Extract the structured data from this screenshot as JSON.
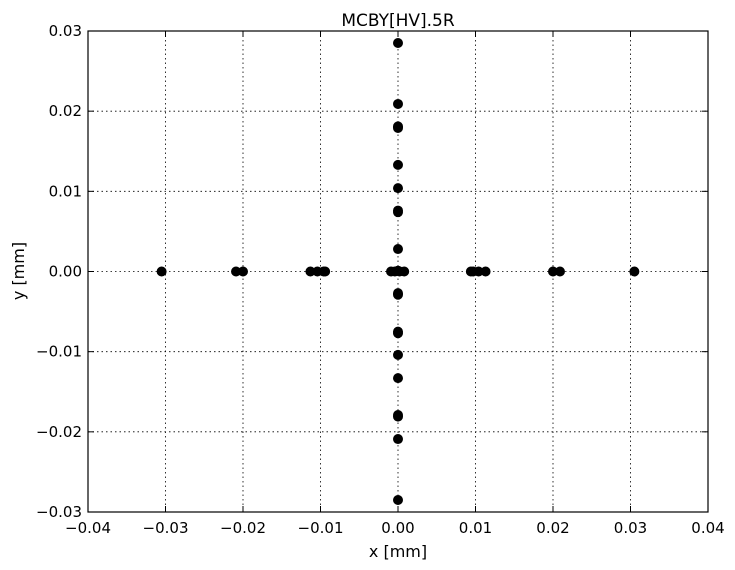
{
  "chart_data": {
    "type": "scatter",
    "title": "MCBY[HV].5R",
    "xlabel": "x [mm]",
    "ylabel": "y [mm]",
    "xlim": [
      -0.04,
      0.04
    ],
    "ylim": [
      -0.03,
      0.03
    ],
    "xticks": [
      -0.04,
      -0.03,
      -0.02,
      -0.01,
      0.0,
      0.01,
      0.02,
      0.03,
      0.04
    ],
    "xtick_labels": [
      "−0.04",
      "−0.03",
      "−0.02",
      "−0.01",
      "0.00",
      "0.01",
      "0.02",
      "0.03",
      "0.04"
    ],
    "yticks": [
      -0.03,
      -0.02,
      -0.01,
      0.0,
      0.01,
      0.02,
      0.03
    ],
    "ytick_labels": [
      "−0.03",
      "−0.02",
      "−0.01",
      "0.00",
      "0.01",
      "0.02",
      "0.03"
    ],
    "grid": true,
    "marker_color": "#000000",
    "points": [
      [
        0.0,
        0.0285
      ],
      [
        0.0,
        0.0209
      ],
      [
        0.0,
        0.0181
      ],
      [
        0.0,
        0.0179
      ],
      [
        0.0,
        0.0133
      ],
      [
        0.0,
        0.0104
      ],
      [
        0.0,
        0.0076
      ],
      [
        0.0,
        0.0074
      ],
      [
        0.0,
        0.0028
      ],
      [
        0.0,
        0.0001
      ],
      [
        0.0,
        -0.0027
      ],
      [
        0.0,
        -0.0029
      ],
      [
        0.0,
        -0.0075
      ],
      [
        0.0,
        -0.0077
      ],
      [
        0.0,
        -0.0104
      ],
      [
        0.0,
        -0.0133
      ],
      [
        0.0,
        -0.0179
      ],
      [
        0.0,
        -0.0181
      ],
      [
        0.0,
        -0.0209
      ],
      [
        0.0,
        -0.0285
      ],
      [
        -0.0305,
        0.0
      ],
      [
        -0.0209,
        0.0
      ],
      [
        -0.02,
        0.0
      ],
      [
        -0.0113,
        0.0
      ],
      [
        -0.0104,
        0.0
      ],
      [
        -0.0096,
        0.0
      ],
      [
        -0.0094,
        0.0
      ],
      [
        -0.0009,
        0.0
      ],
      [
        -0.0004,
        0.0
      ],
      [
        0.0002,
        0.0
      ],
      [
        0.0008,
        0.0
      ],
      [
        0.0094,
        0.0
      ],
      [
        0.0097,
        0.0
      ],
      [
        0.0104,
        0.0
      ],
      [
        0.0113,
        0.0
      ],
      [
        0.02,
        0.0
      ],
      [
        0.0209,
        0.0
      ],
      [
        0.0305,
        0.0
      ]
    ]
  }
}
